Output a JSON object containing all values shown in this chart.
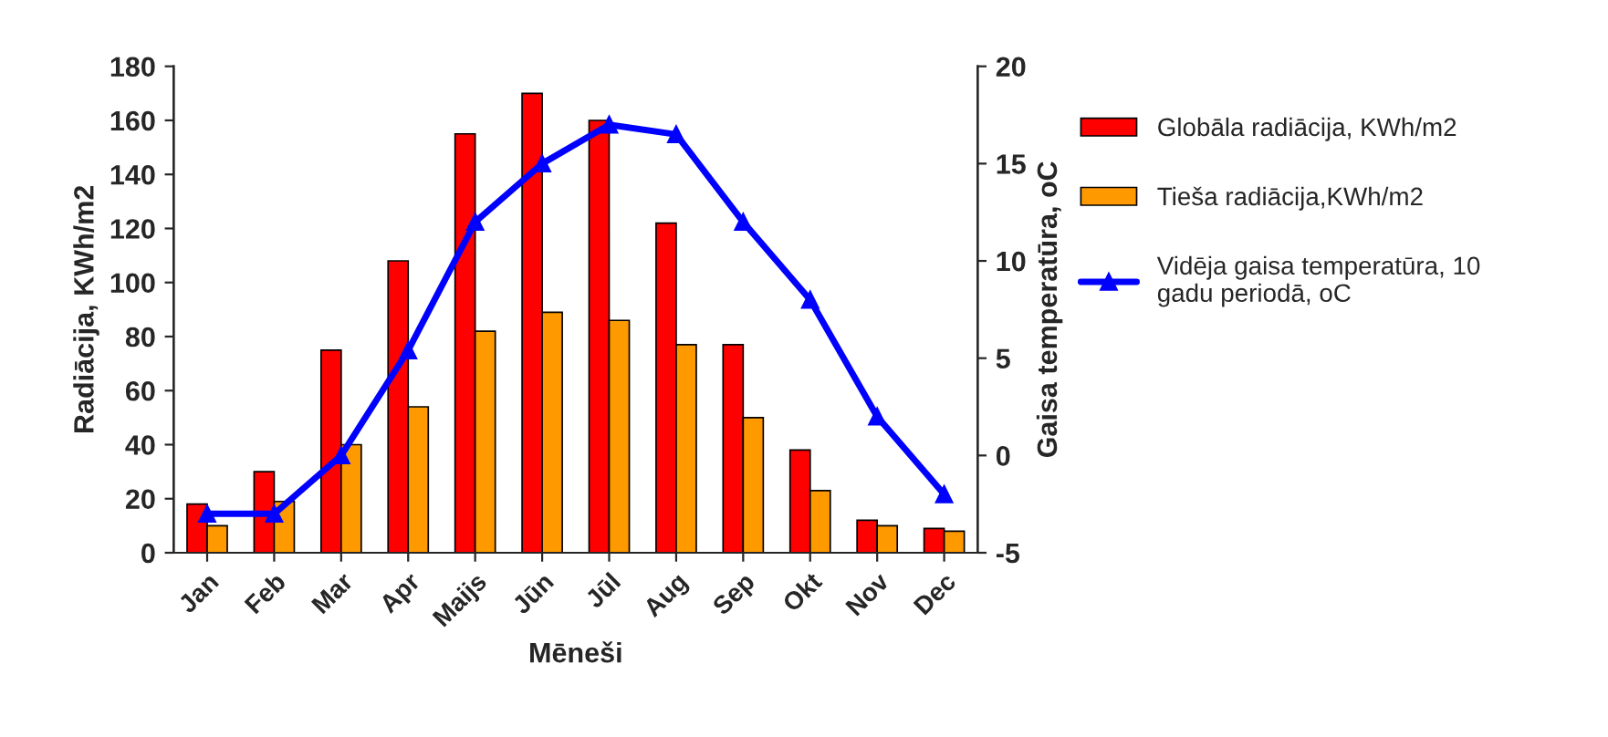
{
  "chart_data": {
    "type": "bar",
    "xlabel": "Mēneši",
    "ylabel": "Radiācija, KWh/m2",
    "y2label": "Gaisa temperatūra, oC",
    "categories": [
      "Jan",
      "Feb",
      "Mar",
      "Apr",
      "Maijs",
      "Jūn",
      "Jūl",
      "Aug",
      "Sep",
      "Okt",
      "Nov",
      "Dec"
    ],
    "series": [
      {
        "name": "Globāla radiācija, KWh/m2",
        "color": "#ff0000",
        "values": [
          18,
          30,
          75,
          108,
          155,
          170,
          160,
          122,
          77,
          38,
          12,
          9
        ]
      },
      {
        "name": "Tieša radiācija,KWh/m2",
        "color": "#ff9900",
        "values": [
          10,
          19,
          40,
          54,
          82,
          89,
          86,
          77,
          50,
          23,
          10,
          8
        ]
      },
      {
        "name": "Vidēja gaisa temperatūra, 10\ngadu periodā, oC",
        "type": "line",
        "axis": "y2",
        "color": "#0000ff",
        "marker": "triangle",
        "line_style": "solid",
        "values": [
          -3,
          -3,
          0,
          5.4,
          12,
          15,
          17,
          16.5,
          12,
          8,
          2,
          -2
        ]
      }
    ],
    "ylim": [
      0,
      180
    ],
    "yticks": [
      0,
      20,
      40,
      60,
      80,
      100,
      120,
      140,
      160,
      180
    ],
    "y2lim": [
      -5,
      20
    ],
    "y2ticks": [
      -5,
      0,
      5,
      10,
      15,
      20
    ],
    "grid": false,
    "legend": "right"
  }
}
